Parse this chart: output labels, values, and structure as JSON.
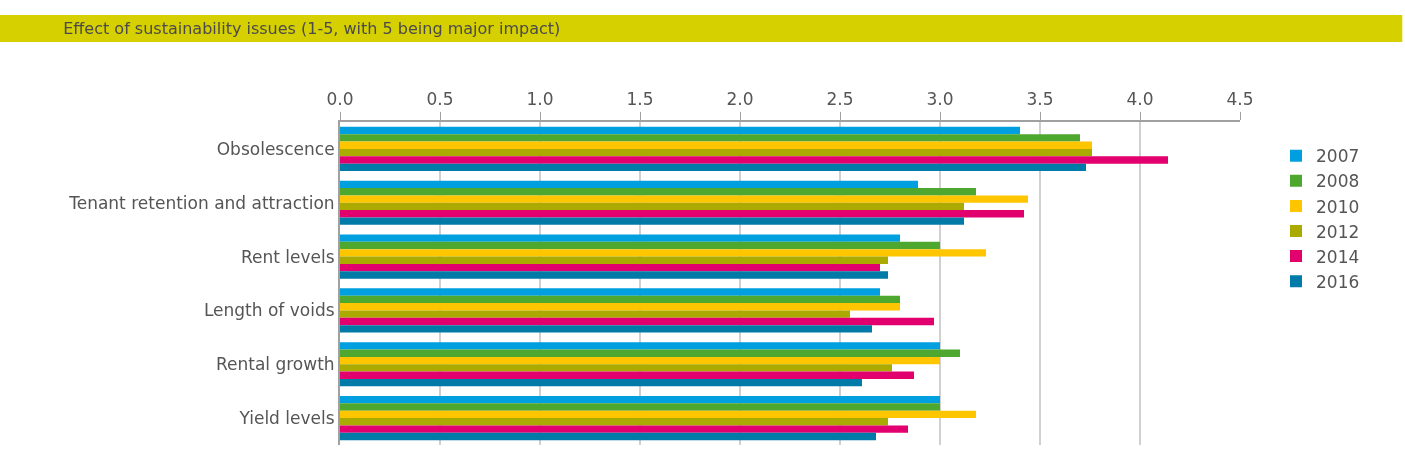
{
  "chart_data": {
    "type": "bar",
    "orientation": "horizontal",
    "title": "Effect of sustainability issues (1-5, with 5 being major impact)",
    "categories": [
      "Obsolescence",
      "Tenant retention and attraction",
      "Rent levels",
      "Length of voids",
      "Rental growth",
      "Yield levels"
    ],
    "series": [
      {
        "name": "2007",
        "color": "#009fdf",
        "values": [
          3.4,
          2.89,
          2.8,
          2.7,
          3.0,
          3.0
        ]
      },
      {
        "name": "2008",
        "color": "#4ea72e",
        "values": [
          3.7,
          3.18,
          3.0,
          2.8,
          3.1,
          3.0
        ]
      },
      {
        "name": "2010",
        "color": "#ffc600",
        "values": [
          3.76,
          3.44,
          3.23,
          2.8,
          3.0,
          3.18
        ]
      },
      {
        "name": "2012",
        "color": "#aaaa00",
        "values": [
          3.76,
          3.12,
          2.74,
          2.55,
          2.76,
          2.74
        ]
      },
      {
        "name": "2014",
        "color": "#e2006f",
        "values": [
          4.14,
          3.42,
          2.7,
          2.97,
          2.87,
          2.84
        ]
      },
      {
        "name": "2016",
        "color": "#007aa6",
        "values": [
          3.73,
          3.12,
          2.74,
          2.66,
          2.61,
          2.68
        ]
      }
    ],
    "xlim": [
      0,
      4.5
    ],
    "xticks": [
      {
        "value": 0,
        "label": "0.0"
      },
      {
        "value": 0.5,
        "label": "0.5"
      },
      {
        "value": 1,
        "label": "1.0"
      },
      {
        "value": 1.5,
        "label": "1.5"
      },
      {
        "value": 2,
        "label": "2.0"
      },
      {
        "value": 2.5,
        "label": "2.5"
      },
      {
        "value": 3,
        "label": "3.0"
      },
      {
        "value": 3.5,
        "label": "3.5"
      },
      {
        "value": 4,
        "label": "4.0"
      },
      {
        "value": 4.5,
        "label": "4.5"
      }
    ],
    "grid": "x",
    "legend": "right"
  }
}
